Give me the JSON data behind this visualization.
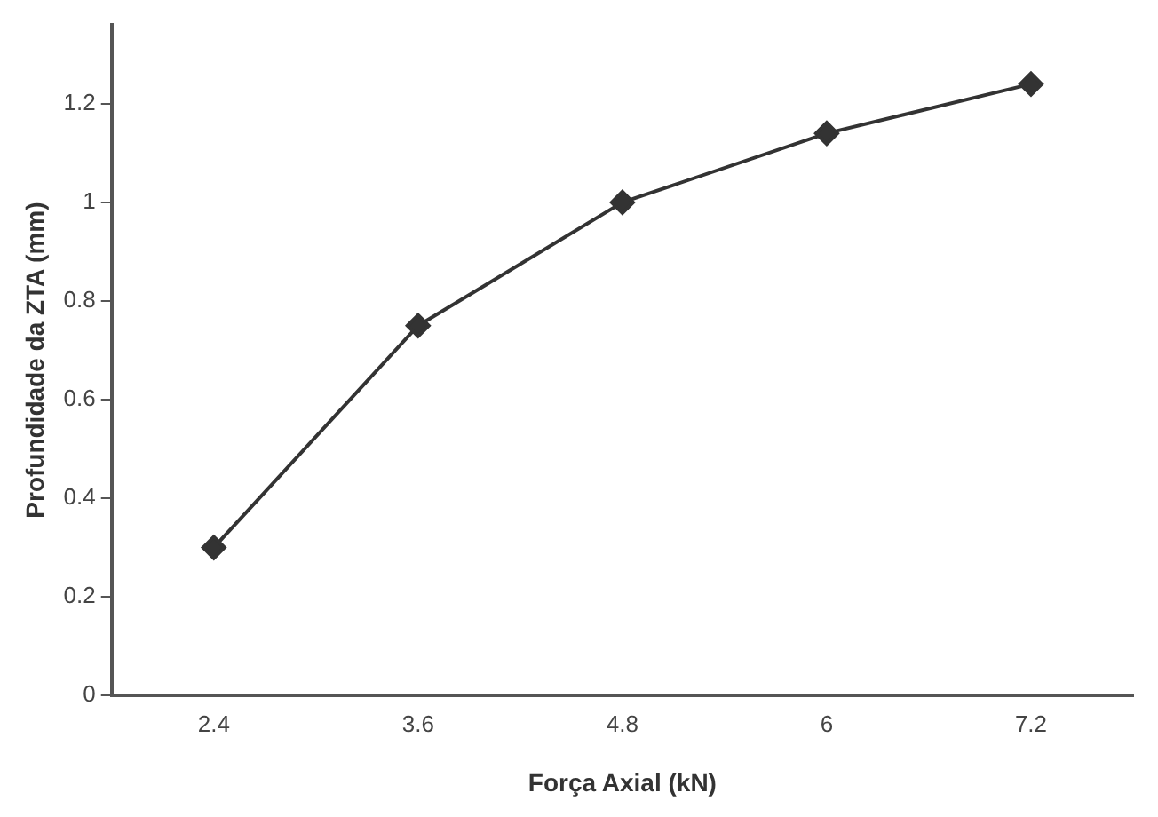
{
  "chart_data": {
    "type": "line",
    "xlabel": "Força Axial (kN)",
    "ylabel": "Profundidade da ZTA (mm)",
    "categories": [
      "2.4",
      "3.6",
      "4.8",
      "6",
      "7.2"
    ],
    "series": [
      {
        "color": "#333333",
        "values": [
          0.3,
          0.75,
          1.0,
          1.14,
          1.24
        ]
      }
    ],
    "ylim": [
      0,
      1.36
    ],
    "yticks": [
      0,
      0.2,
      0.4,
      0.6,
      0.8,
      1,
      1.2
    ],
    "grid": false,
    "legend": false,
    "marker": "diamond",
    "line_style": "solid"
  }
}
